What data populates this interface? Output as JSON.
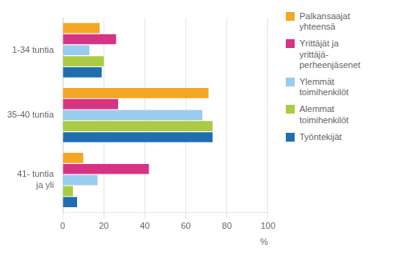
{
  "chart_data": {
    "type": "bar",
    "orientation": "horizontal",
    "categories": [
      "1-34 tuntia",
      "35-40 tuntia",
      "41- tuntia\nja yli"
    ],
    "series": [
      {
        "name": "Palkansaajat\nyhteensä",
        "color": "#F5A623",
        "values": [
          18,
          71,
          10
        ]
      },
      {
        "name": "Yrittäjät ja\nyrittäjä-\nperheenjäsenet",
        "color": "#D63384",
        "values": [
          26,
          27,
          42
        ]
      },
      {
        "name": "Ylemmät\ntoimihenkilöt",
        "color": "#99CCEE",
        "values": [
          13,
          68,
          17
        ]
      },
      {
        "name": "Alemmat\ntoimihenkilöt",
        "color": "#AACC44",
        "values": [
          20,
          73,
          5
        ]
      },
      {
        "name": "Työntekijät",
        "color": "#1F6FAE",
        "values": [
          19,
          73,
          7
        ]
      }
    ],
    "xlim": [
      0,
      100
    ],
    "xticks": [
      0,
      20,
      40,
      60,
      80,
      100
    ],
    "xlabel": "%",
    "grid": true,
    "legend": "right"
  }
}
